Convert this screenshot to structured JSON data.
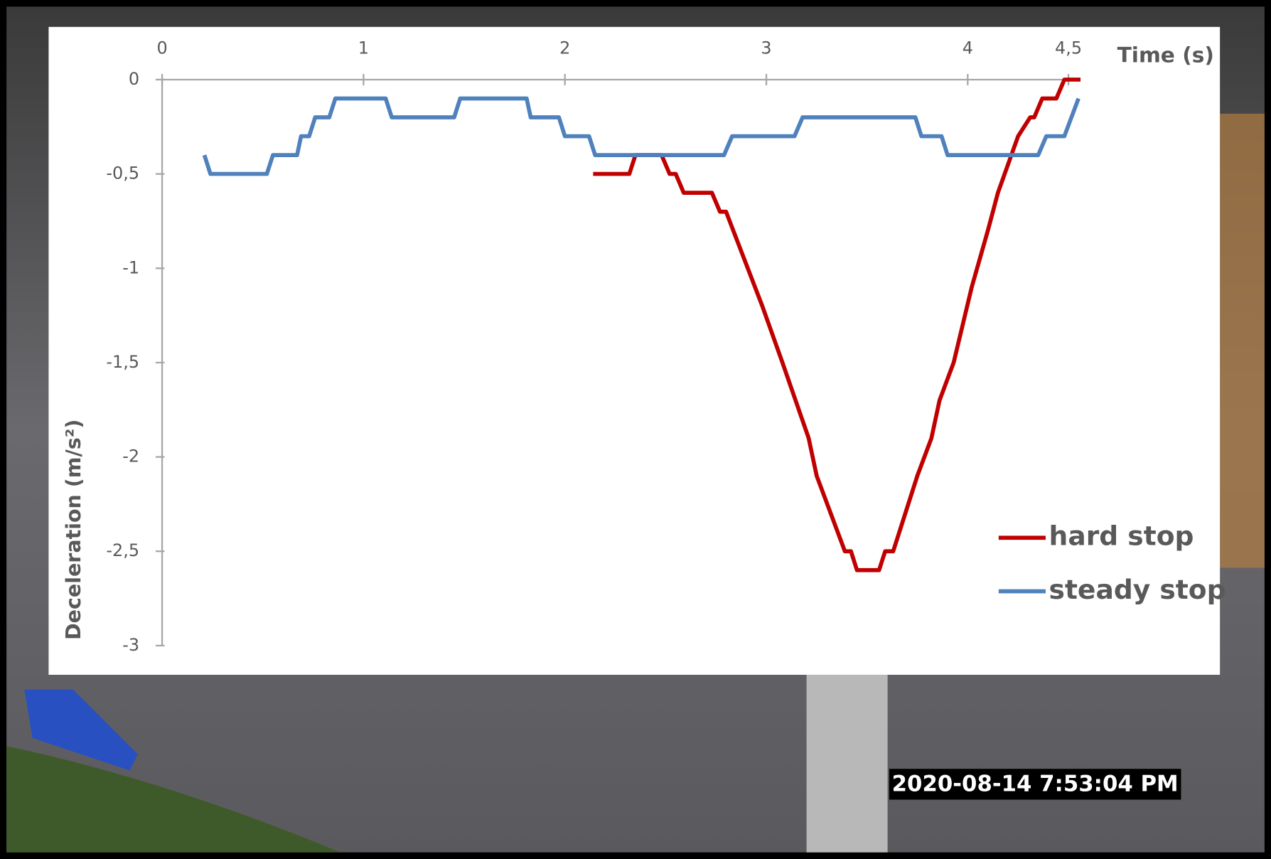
{
  "chart_data": {
    "type": "line",
    "x_label": "Time (s)",
    "y_label": "Deceleration (m/s²)",
    "annotation": "2020-08-14 7:53:04 PM",
    "xlim": [
      0,
      4.56
    ],
    "xticks": [
      0,
      1,
      2,
      3,
      4,
      {
        "value": 4.5,
        "label": "4,5"
      }
    ],
    "ylim": [
      -3,
      0
    ],
    "yticks": [
      0,
      {
        "value": -0.5,
        "label": "-0,5"
      },
      -1,
      {
        "value": -1.5,
        "label": "-1,5"
      },
      -2,
      {
        "value": -2.5,
        "label": "-2,5"
      },
      -3
    ],
    "legend": "lower-right",
    "series": [
      {
        "name": "hard stop",
        "color": "#c00000",
        "x": [
          2.14,
          2.32,
          2.35,
          2.48,
          2.52,
          2.55,
          2.59,
          2.73,
          2.77,
          2.8,
          2.98,
          3.08,
          3.21,
          3.25,
          3.39,
          3.42,
          3.45,
          3.56,
          3.59,
          3.63,
          3.75,
          3.82,
          3.86,
          3.93,
          4.02,
          4.1,
          4.15,
          4.25,
          4.31,
          4.33,
          4.37,
          4.44,
          4.48,
          4.56
        ],
        "values": [
          -0.5,
          -0.5,
          -0.4,
          -0.4,
          -0.5,
          -0.5,
          -0.6,
          -0.6,
          -0.7,
          -0.7,
          -1.2,
          -1.5,
          -1.9,
          -2.1,
          -2.5,
          -2.5,
          -2.6,
          -2.6,
          -2.5,
          -2.5,
          -2.1,
          -1.9,
          -1.7,
          -1.5,
          -1.1,
          -0.8,
          -0.6,
          -0.3,
          -0.2,
          -0.2,
          -0.1,
          -0.1,
          0,
          0
        ]
      },
      {
        "name": "steady stop",
        "color": "#4f81bd",
        "x": [
          0.21,
          0.24,
          0.52,
          0.55,
          0.67,
          0.69,
          0.73,
          0.76,
          0.83,
          0.86,
          1.11,
          1.14,
          1.45,
          1.48,
          1.81,
          1.83,
          1.97,
          2.0,
          2.12,
          2.15,
          2.79,
          2.83,
          3.14,
          3.18,
          3.74,
          3.77,
          3.87,
          3.9,
          4.35,
          4.39,
          4.48,
          4.55
        ],
        "values": [
          -0.4,
          -0.5,
          -0.5,
          -0.4,
          -0.4,
          -0.3,
          -0.3,
          -0.2,
          -0.2,
          -0.1,
          -0.1,
          -0.2,
          -0.2,
          -0.1,
          -0.1,
          -0.2,
          -0.2,
          -0.3,
          -0.3,
          -0.4,
          -0.4,
          -0.3,
          -0.3,
          -0.2,
          -0.2,
          -0.3,
          -0.3,
          -0.4,
          -0.4,
          -0.3,
          -0.3,
          -0.1
        ]
      }
    ]
  }
}
